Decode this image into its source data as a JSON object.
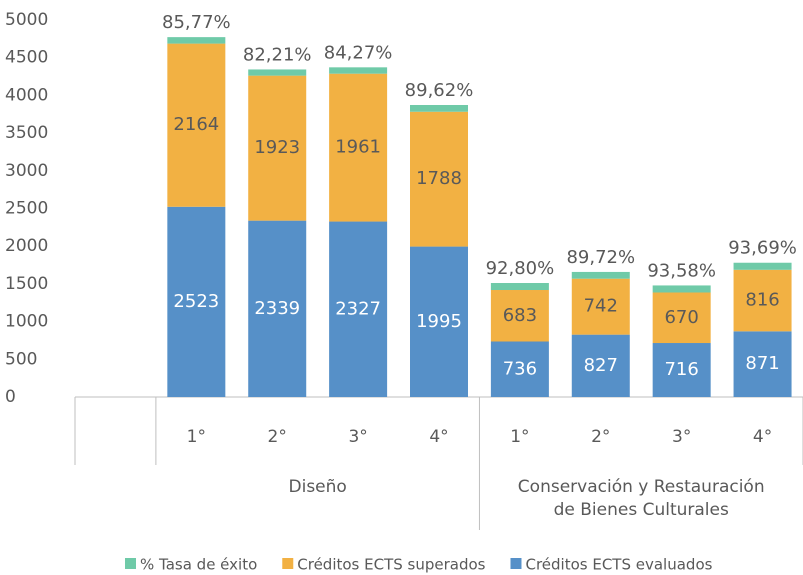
{
  "chart_data": {
    "type": "stacked-bar",
    "groups": [
      {
        "name": [
          "Diseño"
        ],
        "categories": [
          "1°",
          "2°",
          "3°",
          "4°"
        ]
      },
      {
        "name": [
          "Conservación y Restauración",
          "de Bienes Culturales"
        ],
        "categories": [
          "1°",
          "2°",
          "3°",
          "4°"
        ]
      }
    ],
    "series": [
      {
        "name": "Créditos ECTS evaluados",
        "color": "#5690c8",
        "values": [
          2523,
          2339,
          2327,
          1995,
          736,
          827,
          716,
          871
        ]
      },
      {
        "name": "Créditos ECTS superados",
        "color": "#f2b143",
        "values": [
          2164,
          1923,
          1961,
          1788,
          683,
          742,
          670,
          816
        ]
      },
      {
        "name": "% Tasa de éxito",
        "color": "#6fcaa8",
        "values": [
          85.77,
          82.21,
          84.27,
          89.62,
          92.8,
          89.72,
          93.58,
          93.69
        ],
        "value_labels": [
          "85,77%",
          "82,21%",
          "84,27%",
          "89,62%",
          "92,80%",
          "89,72%",
          "93,58%",
          "93,69%"
        ]
      }
    ],
    "ylim": [
      0,
      5000
    ],
    "yticks": [
      0,
      500,
      1000,
      1500,
      2000,
      2500,
      3000,
      3500,
      4000,
      4500,
      5000
    ]
  }
}
